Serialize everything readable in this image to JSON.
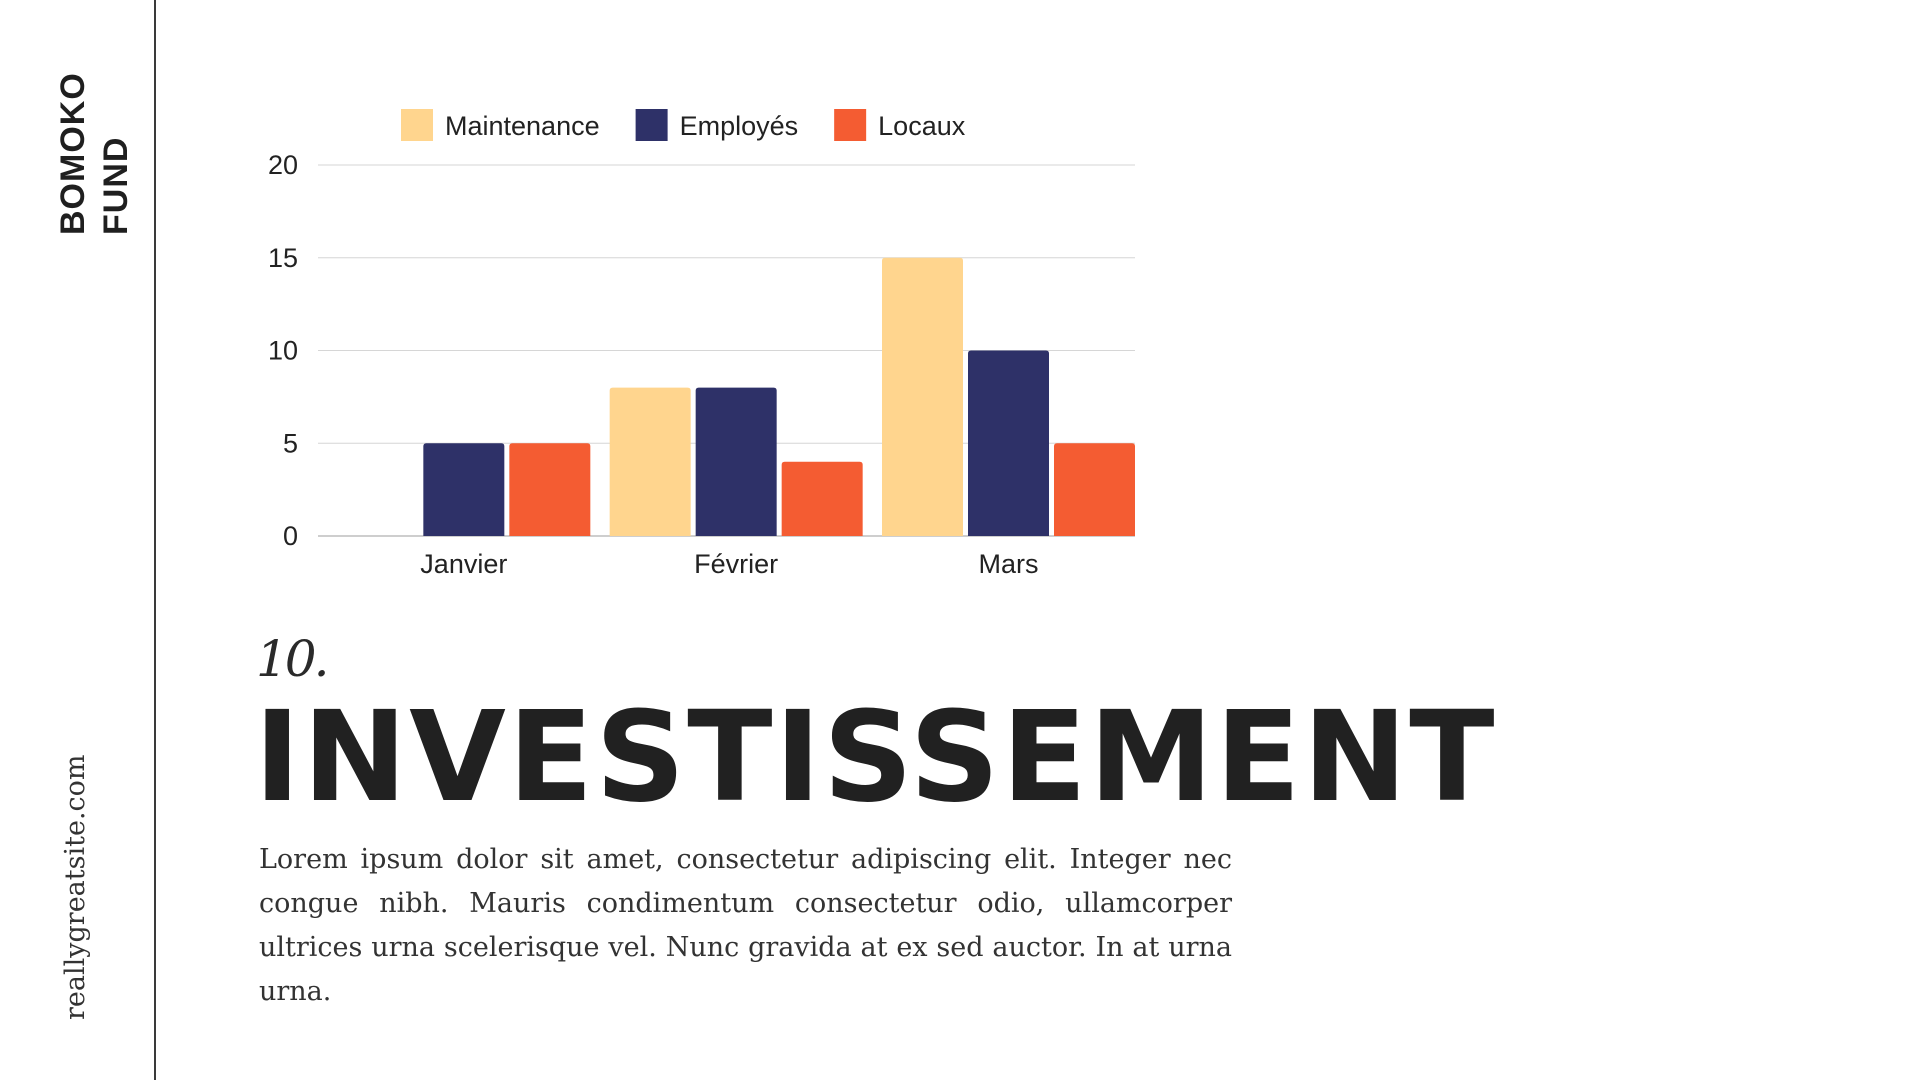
{
  "brand": {
    "line1": "BOMOKO",
    "line2": "FUND"
  },
  "website": "reallygreatsite.com",
  "section_number": "10.",
  "title": "INVESTISSEMENT",
  "body": "Lorem ipsum dolor sit amet, consectetur adipiscing elit. Integer nec congue nibh. Mauris condimentum consectetur odio, ullamcorper ultrices urna scelerisque vel. Nunc gravida at ex sed auctor. In at urna urna.",
  "chart_data": {
    "type": "bar",
    "categories": [
      "Janvier",
      "Février",
      "Mars"
    ],
    "series": [
      {
        "name": "Maintenance",
        "color": "#FFD58E",
        "values": [
          0,
          8,
          15
        ]
      },
      {
        "name": "Employés",
        "color": "#2E3168",
        "values": [
          5,
          8,
          10
        ]
      },
      {
        "name": "Locaux",
        "color": "#F45C32",
        "values": [
          5,
          4,
          5
        ]
      }
    ],
    "yticks": [
      0,
      5,
      10,
      15,
      20
    ],
    "ylim": [
      0,
      20
    ],
    "grid": true,
    "legend": "top"
  }
}
